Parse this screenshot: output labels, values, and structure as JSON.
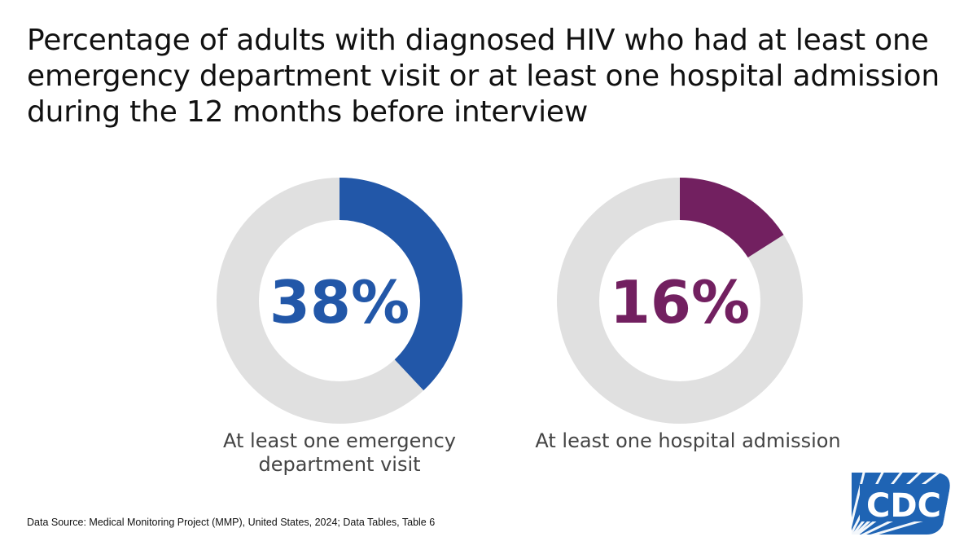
{
  "title": "Percentage of adults with diagnosed HIV who had at least one emergency department visit or at least one hospital admission during the 12 months before interview",
  "chart_data": [
    {
      "type": "pie",
      "variant": "donut",
      "value": 38,
      "value_label": "38%",
      "label": "At least one emergency department visit",
      "color": "#2257a8",
      "track_color": "#e0e0e0"
    },
    {
      "type": "pie",
      "variant": "donut",
      "value": 16,
      "value_label": "16%",
      "label": "At least one hospital admission",
      "color": "#722060",
      "track_color": "#e0e0e0"
    }
  ],
  "source": "Data Source: Medical Monitoring Project (MMP), United States, 2024; Data Tables, Table 6",
  "logo": {
    "icon": "cdc-logo-icon",
    "text": "CDC",
    "color": "#1f64b4"
  }
}
